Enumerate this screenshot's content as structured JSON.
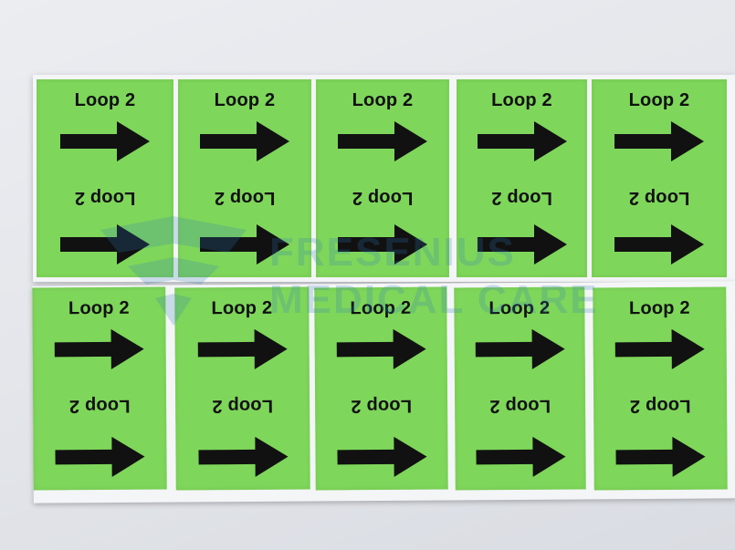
{
  "labels": {
    "top": [
      "Loop 2",
      "Loop 2",
      "Loop 2",
      "Loop 2",
      "Loop 2"
    ],
    "bottom": [
      "Loop 2",
      "Loop 2",
      "Loop 2",
      "Loop 2",
      "Loop 2"
    ]
  },
  "watermark": {
    "line1": "FRESENIUS",
    "line2": "MEDICAL CARE"
  },
  "colors": {
    "label_green": "#7ed65a",
    "arrow": "#111111",
    "watermark": "#2f7fb8"
  },
  "icons": [
    "arrow-right-icon"
  ]
}
